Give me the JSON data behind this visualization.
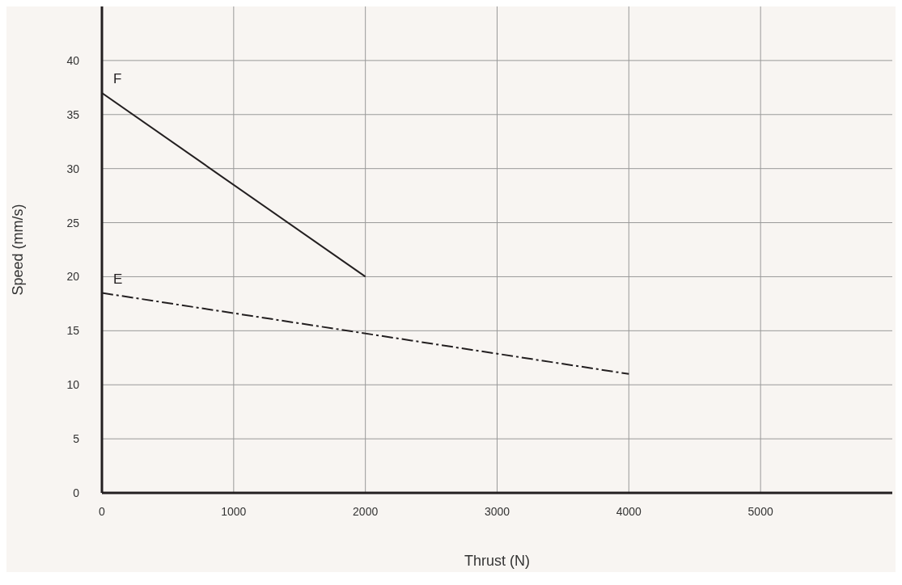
{
  "chart_data": {
    "type": "line",
    "xlabel": "Thrust (N)",
    "ylabel": "Speed (mm/s)",
    "series": [
      {
        "name": "F",
        "color": "#231f20",
        "x": [
          0,
          2000
        ],
        "values": [
          37,
          20
        ],
        "line_style": "solid"
      },
      {
        "name": "E",
        "color": "#231f20",
        "x": [
          0,
          4000
        ],
        "values": [
          18.5,
          11
        ],
        "line_style": "dashed"
      }
    ],
    "xlim": [
      0,
      6000
    ],
    "xticks": [
      0,
      1000,
      2000,
      3000,
      4000,
      5000
    ],
    "ylim": [
      0,
      45
    ],
    "yticks": [
      0,
      5,
      10,
      15,
      20,
      25,
      30,
      35,
      40
    ],
    "grid": true,
    "marker": "none"
  }
}
